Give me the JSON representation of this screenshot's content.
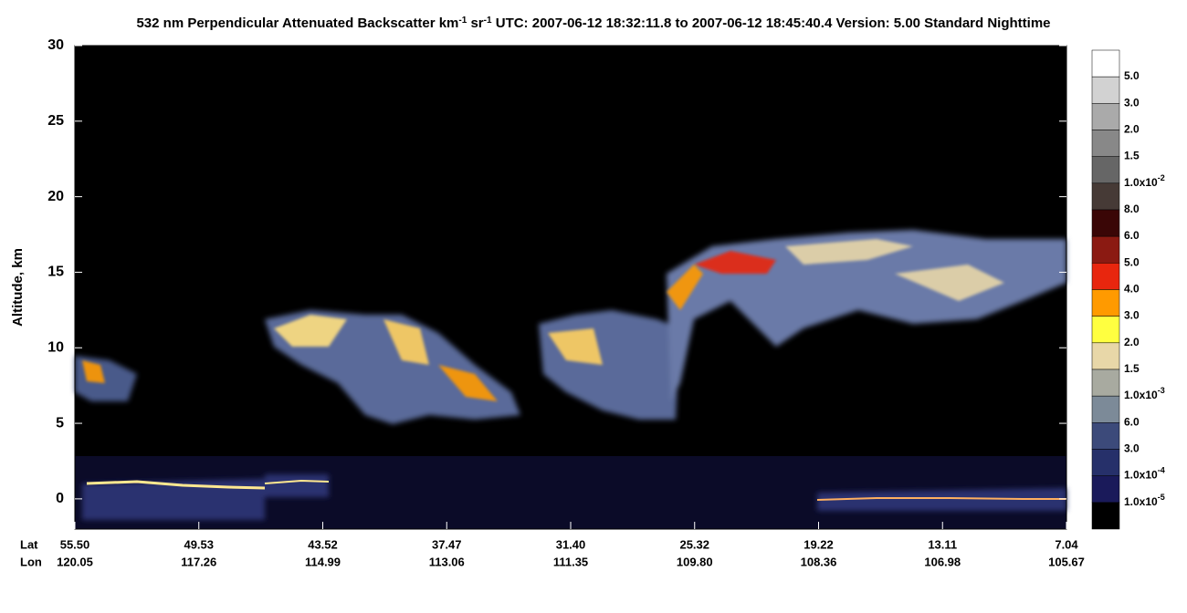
{
  "chart_data": {
    "type": "curtain",
    "title": [
      "532 nm Perpendicular Attenuated Backscatter km",
      "-1",
      " sr",
      "-1",
      "  UTC: 2007-06-12 18:32:11.8 to 2007-06-12 18:45:40.4  Version: 5.00 Standard Nighttime"
    ],
    "y_label": "Altitude, km",
    "ylim": [
      -2,
      30
    ],
    "yticks": [
      0,
      5,
      10,
      15,
      20,
      25,
      30
    ],
    "x_rows": [
      "Lat",
      "Lon"
    ],
    "lat": [
      "55.50",
      "49.53",
      "43.52",
      "37.47",
      "31.40",
      "25.32",
      "19.22",
      "13.11",
      "7.04"
    ],
    "lon": [
      "120.05",
      "117.26",
      "114.99",
      "113.06",
      "111.35",
      "109.80",
      "108.36",
      "106.98",
      "105.67"
    ],
    "colorbar": {
      "colors": [
        "#ffffff",
        "#d2d2d2",
        "#aaaaaa",
        "#888888",
        "#666666",
        "#463a36",
        "#3a0606",
        "#8b1a12",
        "#e8260e",
        "#ff9a00",
        "#ffff40",
        "#e8d7a8",
        "#a8aaa0",
        "#7c8a98",
        "#3c4a7a",
        "#26306a",
        "#1a1a5a",
        "#000000"
      ],
      "labels": [
        {
          "text": "5.0"
        },
        {
          "text": "3.0"
        },
        {
          "text": "2.0"
        },
        {
          "text": "1.5"
        },
        {
          "text": "1.0x10",
          "sup": "-2"
        },
        {
          "text": "8.0"
        },
        {
          "text": "6.0"
        },
        {
          "text": "5.0"
        },
        {
          "text": "4.0"
        },
        {
          "text": "3.0"
        },
        {
          "text": "2.0"
        },
        {
          "text": "1.5"
        },
        {
          "text": "1.0x10",
          "sup": "-3"
        },
        {
          "text": "6.0"
        },
        {
          "text": "3.0"
        },
        {
          "text": "1.0x10",
          "sup": "-4"
        },
        {
          "text": "1.0x10",
          "sup": "-5"
        }
      ]
    }
  }
}
